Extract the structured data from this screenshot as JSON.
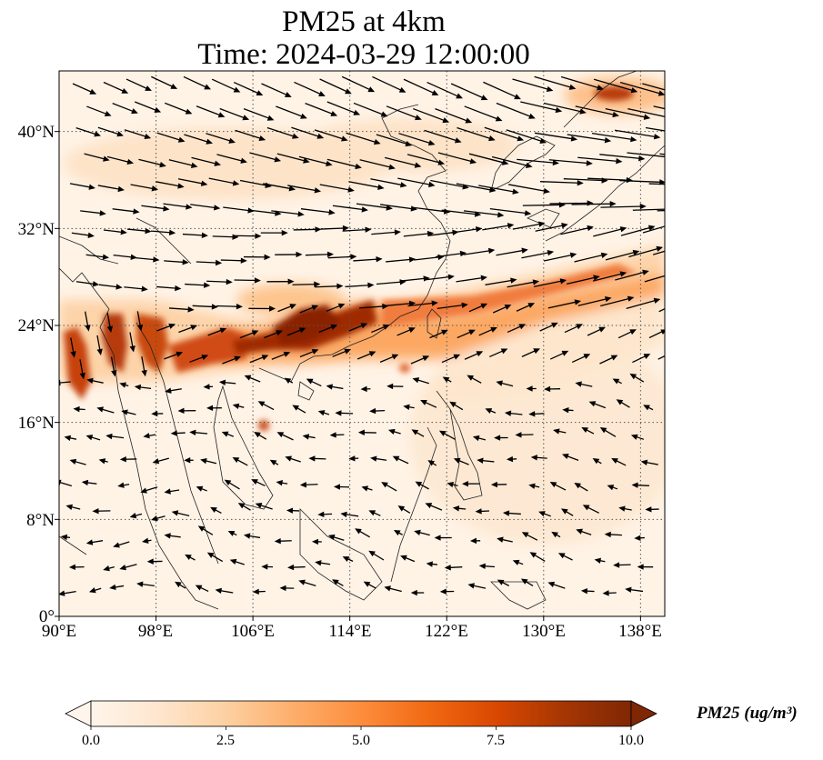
{
  "title_line1": "PM25 at 4km",
  "title_line2": "Time: 2024-03-29 12:00:00",
  "map": {
    "lon_range": [
      90,
      140
    ],
    "lat_range": [
      0,
      45
    ],
    "lat_ticks": [
      {
        "value": 40,
        "label": "40°N"
      },
      {
        "value": 32,
        "label": "32°N"
      },
      {
        "value": 24,
        "label": "24°N"
      },
      {
        "value": 16,
        "label": "16°N"
      },
      {
        "value": 8,
        "label": "8°N"
      },
      {
        "value": 0,
        "label": "0°"
      }
    ],
    "lon_ticks": [
      {
        "value": 90,
        "label": "90°E"
      },
      {
        "value": 98,
        "label": "98°E"
      },
      {
        "value": 106,
        "label": "106°E"
      },
      {
        "value": 114,
        "label": "114°E"
      },
      {
        "value": 122,
        "label": "122°E"
      },
      {
        "value": 130,
        "label": "130°E"
      },
      {
        "value": 138,
        "label": "138°E"
      }
    ],
    "gridlines": true
  },
  "colorbar": {
    "title": "PM25 (ug/m³)",
    "min": 0.0,
    "max": 10.0,
    "extend": "both",
    "ticks": [
      "0.0",
      "2.5",
      "5.0",
      "7.5",
      "10.0"
    ],
    "colors": [
      "#fff5eb",
      "#fee6ce",
      "#fdd0a2",
      "#fdae6b",
      "#fd8d3c",
      "#f16913",
      "#d94801",
      "#a63603",
      "#7f2704"
    ]
  }
}
